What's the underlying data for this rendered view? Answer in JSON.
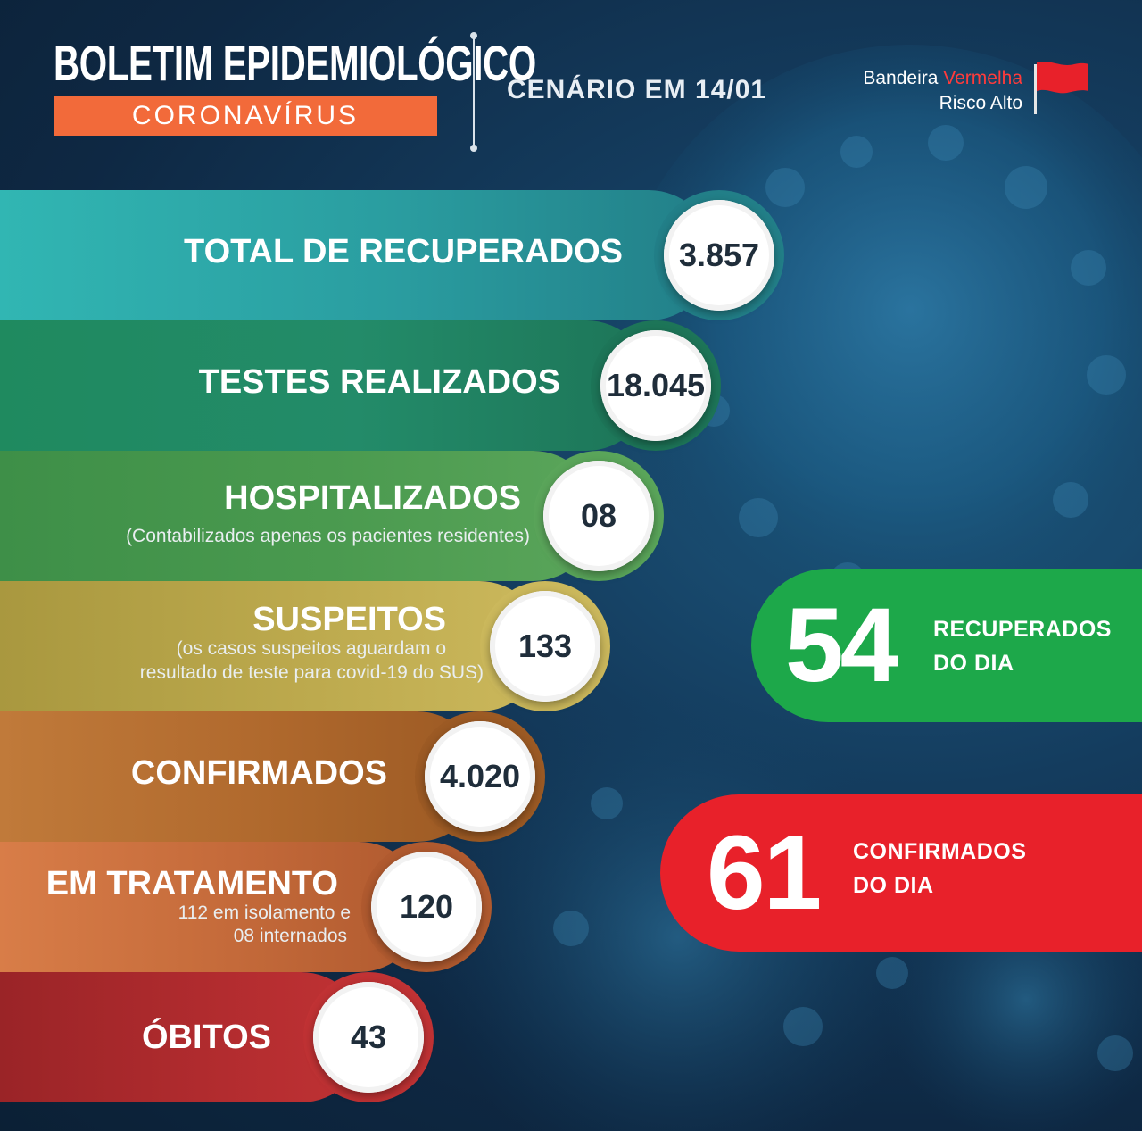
{
  "header": {
    "title": "BOLETIM EPIDEMIOLÓGICO",
    "subtitle": "CORONAVÍRUS",
    "scenario": "CENÁRIO EM 14/01",
    "flag_line1_prefix": "Bandeira ",
    "flag_line1_color": "Vermelha",
    "flag_line2": "Risco Alto"
  },
  "stats": [
    {
      "label": "TOTAL DE RECUPERADOS",
      "value": "3.857",
      "note": "",
      "color": "#2a9da0"
    },
    {
      "label": "TESTES REALIZADOS",
      "value": "18.045",
      "note": "",
      "color": "#238b69"
    },
    {
      "label": "HOSPITALIZADOS",
      "value": "08",
      "note": "(Contabilizados apenas os pacientes residentes)",
      "color": "#4a9a4f"
    },
    {
      "label": "SUSPEITOS",
      "value": "133",
      "note_line1": "(os casos suspeitos aguardam o",
      "note_line2": "resultado de teste para covid-19 do SUS)",
      "color": "#bca94d"
    },
    {
      "label": "CONFIRMADOS",
      "value": "4.020",
      "note": "",
      "color": "#b0692d"
    },
    {
      "label": "EM TRATAMENTO",
      "value": "120",
      "note_line1": "112 em isolamento e",
      "note_line2": "08 internados",
      "color": "#c46a3a"
    },
    {
      "label": "ÓBITOS",
      "value": "43",
      "note": "",
      "color": "#b02b2e"
    }
  ],
  "recovered_today": {
    "number": "54",
    "line1": "RECUPERADOS",
    "line2": "DO DIA",
    "color": "#1da84a"
  },
  "confirmed_today": {
    "number": "61",
    "line1": "CONFIRMADOS",
    "line2": "DO DIA",
    "color": "#e8212a"
  }
}
